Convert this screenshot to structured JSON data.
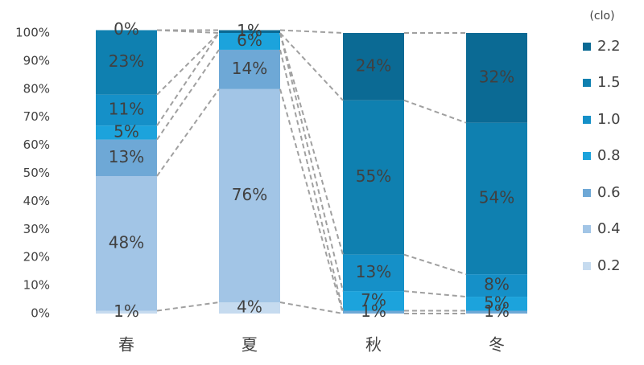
{
  "chart_data": {
    "type": "stacked_bar_percent",
    "categories": [
      "春",
      "夏",
      "秋",
      "冬"
    ],
    "legend_title": "(clo)",
    "series": [
      {
        "name": "0.2",
        "color": "#c6dbef",
        "values": [
          1,
          4,
          0,
          0
        ],
        "value_labels": [
          "1%",
          "4%",
          null,
          null
        ]
      },
      {
        "name": "0.4",
        "color": "#a2c5e6",
        "values": [
          48,
          76,
          0,
          0
        ],
        "value_labels": [
          "48%",
          "76%",
          null,
          null
        ]
      },
      {
        "name": "0.6",
        "color": "#6ea8d6",
        "values": [
          13,
          14,
          1,
          1
        ],
        "value_labels": [
          "13%",
          "14%",
          "1%",
          "1%"
        ]
      },
      {
        "name": "0.8",
        "color": "#1ca3dc",
        "values": [
          5,
          6,
          7,
          5
        ],
        "value_labels": [
          "5%",
          "6%",
          "7%",
          "5%"
        ]
      },
      {
        "name": "1.0",
        "color": "#1590c8",
        "values": [
          11,
          0,
          13,
          8
        ],
        "value_labels": [
          "11%",
          null,
          "13%",
          "8%"
        ]
      },
      {
        "name": "1.5",
        "color": "#0f80b0",
        "values": [
          23,
          0,
          55,
          54
        ],
        "value_labels": [
          "23%",
          null,
          "55%",
          "54%"
        ]
      },
      {
        "name": "2.2",
        "color": "#0b6a94",
        "values": [
          0,
          1,
          24,
          32
        ],
        "value_labels": [
          "0%",
          "1%",
          "24%",
          "32%"
        ]
      }
    ],
    "ylim": [
      0,
      100
    ],
    "yticks": [
      {
        "value": 0,
        "label": "0%"
      },
      {
        "value": 10,
        "label": "10%"
      },
      {
        "value": 20,
        "label": "20%"
      },
      {
        "value": 30,
        "label": "30%"
      },
      {
        "value": 40,
        "label": "40%"
      },
      {
        "value": 50,
        "label": "50%"
      },
      {
        "value": 60,
        "label": "60%"
      },
      {
        "value": 70,
        "label": "70%"
      },
      {
        "value": 80,
        "label": "80%"
      },
      {
        "value": 90,
        "label": "90%"
      },
      {
        "value": 100,
        "label": "100%"
      }
    ]
  }
}
